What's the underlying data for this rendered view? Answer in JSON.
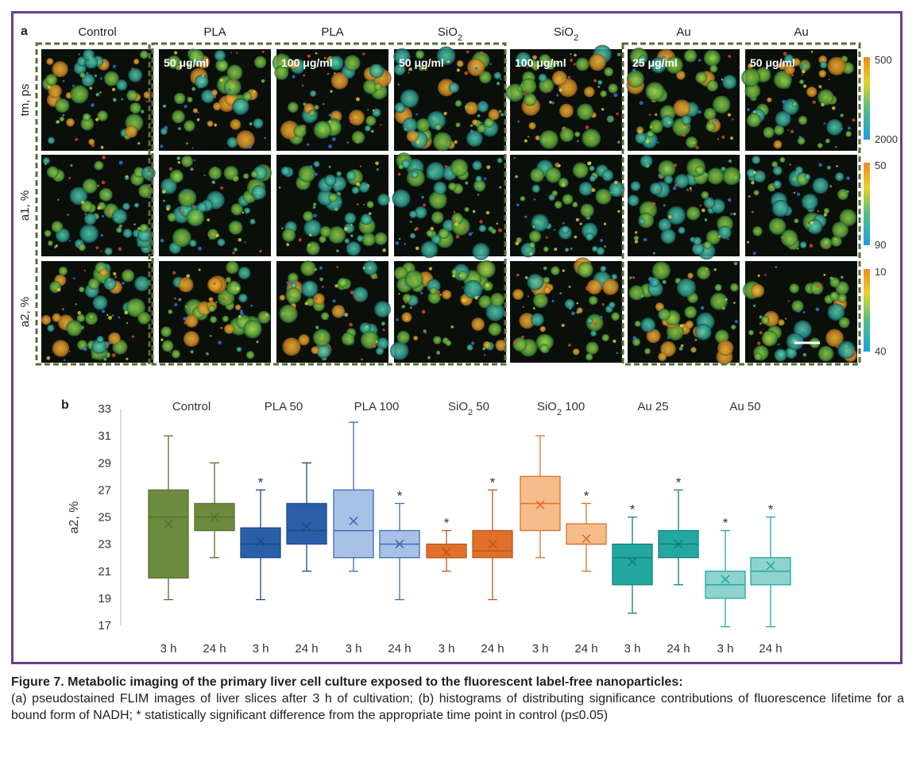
{
  "panel_a": {
    "letter": "a",
    "columns": [
      {
        "title": "Control",
        "sub": null,
        "conc": ""
      },
      {
        "title": "PLA",
        "sub": null,
        "conc": "50 μg/ml"
      },
      {
        "title": "PLA",
        "sub": null,
        "conc": "100 μg/ml"
      },
      {
        "title": "SiO",
        "sub": "2",
        "conc": "50 μg/ml"
      },
      {
        "title": "SiO",
        "sub": "2",
        "conc": "100 μg/ml"
      },
      {
        "title": "Au",
        "sub": null,
        "conc": "25 μg/ml"
      },
      {
        "title": "Au",
        "sub": null,
        "conc": "50 μg/ml"
      }
    ],
    "rows": [
      "tm, ps",
      "a1, %",
      "a2, %"
    ],
    "scales": [
      {
        "top": "500",
        "bottom": "2000"
      },
      {
        "top": "50",
        "bottom": "90"
      },
      {
        "top": "10",
        "bottom": "40"
      }
    ],
    "colors": {
      "frame": "#6a3d8e",
      "dashed": "#5a6b3a"
    }
  },
  "panel_b": {
    "letter": "b",
    "chart_data": {
      "type": "box",
      "ylabel": "a2, %",
      "ylim": [
        17,
        33
      ],
      "yticks": [
        17,
        19,
        21,
        23,
        25,
        27,
        29,
        31,
        33
      ],
      "groups": [
        {
          "label": "Control",
          "sub": null
        },
        {
          "label": "PLA 50",
          "sub": null
        },
        {
          "label": "PLA 100",
          "sub": null
        },
        {
          "label": "SiO",
          "sub": "2",
          "suffix": " 50"
        },
        {
          "label": "SiO",
          "sub": "2",
          "suffix": " 100"
        },
        {
          "label": "Au 25",
          "sub": null
        },
        {
          "label": "Au 50",
          "sub": null
        }
      ],
      "boxes": [
        {
          "time": "3 h",
          "min": 18.9,
          "q1": 20.5,
          "median": 25.0,
          "q3": 27.0,
          "max": 31.0,
          "mean": 24.5,
          "sig": false,
          "fill": "#6d8b3e",
          "stroke": "#567030"
        },
        {
          "time": "24 h",
          "min": 22.0,
          "q1": 24.0,
          "median": 25.0,
          "q3": 26.0,
          "max": 29.0,
          "mean": 25.0,
          "sig": false,
          "fill": "#6d8b3e",
          "stroke": "#567030"
        },
        {
          "time": "3 h",
          "min": 18.9,
          "q1": 22.0,
          "median": 23.0,
          "q3": 24.2,
          "max": 27.0,
          "mean": 23.2,
          "sig": true,
          "fill": "#2a5fa8",
          "stroke": "#1f4a86"
        },
        {
          "time": "24 h",
          "min": 21.0,
          "q1": 23.0,
          "median": 24.0,
          "q3": 26.0,
          "max": 29.0,
          "mean": 24.3,
          "sig": false,
          "fill": "#2a5fa8",
          "stroke": "#1f4a86"
        },
        {
          "time": "3 h",
          "min": 21.0,
          "q1": 22.0,
          "median": 24.0,
          "q3": 27.0,
          "max": 32.0,
          "mean": 24.7,
          "sig": false,
          "fill": "#a9c0e6",
          "stroke": "#3d6cb3"
        },
        {
          "time": "24 h",
          "min": 18.9,
          "q1": 22.0,
          "median": 23.0,
          "q3": 24.0,
          "max": 26.0,
          "mean": 23.0,
          "sig": true,
          "fill": "#a9c0e6",
          "stroke": "#3d6cb3"
        },
        {
          "time": "3 h",
          "min": 21.0,
          "q1": 22.0,
          "median": 22.0,
          "q3": 23.0,
          "max": 24.0,
          "mean": 22.4,
          "sig": true,
          "fill": "#e2702a",
          "stroke": "#b95a1e"
        },
        {
          "time": "24 h",
          "min": 18.9,
          "q1": 22.0,
          "median": 22.5,
          "q3": 24.0,
          "max": 27.0,
          "mean": 23.0,
          "sig": true,
          "fill": "#e2702a",
          "stroke": "#b95a1e"
        },
        {
          "time": "3 h",
          "min": 22.0,
          "q1": 24.0,
          "median": 26.0,
          "q3": 28.0,
          "max": 31.0,
          "mean": 25.9,
          "sig": false,
          "fill": "#f6bd8c",
          "stroke": "#e2702a"
        },
        {
          "time": "24 h",
          "min": 21.0,
          "q1": 23.0,
          "median": 23.0,
          "q3": 24.5,
          "max": 26.0,
          "mean": 23.4,
          "sig": true,
          "fill": "#f6bd8c",
          "stroke": "#e2702a"
        },
        {
          "time": "3 h",
          "min": 17.9,
          "q1": 20.0,
          "median": 22.0,
          "q3": 23.0,
          "max": 25.0,
          "mean": 21.7,
          "sig": true,
          "fill": "#22a8a0",
          "stroke": "#158079"
        },
        {
          "time": "24 h",
          "min": 20.0,
          "q1": 22.0,
          "median": 23.0,
          "q3": 24.0,
          "max": 27.0,
          "mean": 23.0,
          "sig": true,
          "fill": "#22a8a0",
          "stroke": "#158079"
        },
        {
          "time": "3 h",
          "min": 16.9,
          "q1": 19.0,
          "median": 20.0,
          "q3": 21.0,
          "max": 24.0,
          "mean": 20.4,
          "sig": true,
          "fill": "#8fd3ce",
          "stroke": "#22a8a0"
        },
        {
          "time": "24 h",
          "min": 16.9,
          "q1": 20.0,
          "median": 21.0,
          "q3": 22.0,
          "max": 25.0,
          "mean": 21.4,
          "sig": true,
          "fill": "#8fd3ce",
          "stroke": "#22a8a0"
        }
      ],
      "sig_marker": "*"
    }
  },
  "caption": {
    "title": "Figure 7. Metabolic imaging of the primary liver cell culture exposed to the fluorescent label-free nanoparticles:",
    "body": "(a) pseudostained FLIM images of liver slices after 3 h of cultivation; (b) histograms of distributing significance contributions of fluorescence lifetime for a bound form of NADH; * statistically significant difference from the appropriate time point in control (p≤0.05)"
  }
}
